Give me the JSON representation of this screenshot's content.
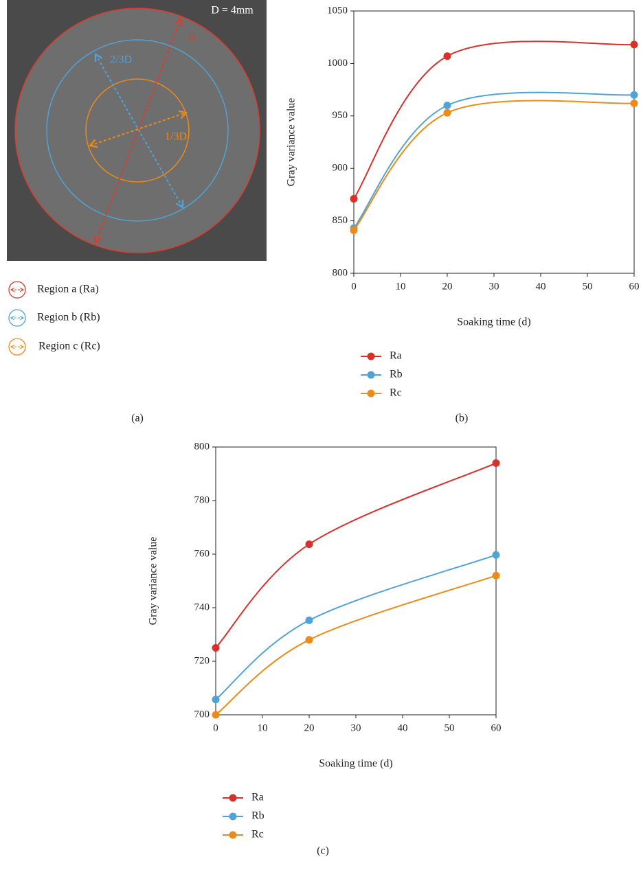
{
  "panel_a": {
    "scale_label": "D = 4mm",
    "diameter_labels": [
      "D",
      "2/3D",
      "1/3D"
    ],
    "legend": [
      "Region a (Ra)",
      "Region b (Rb)",
      "Region c (Rc)"
    ],
    "panel_label": "(a)"
  },
  "chart_data": [
    {
      "type": "line",
      "panel_label": "(b)",
      "y_label": "Gray variance value",
      "x_label": "Soaking time (d)",
      "x": [
        0,
        20,
        60
      ],
      "xlim": [
        0,
        60
      ],
      "xticks": [
        0,
        10,
        20,
        30,
        40,
        50,
        60
      ],
      "ylim": [
        800,
        1050
      ],
      "yticks": [
        800,
        850,
        900,
        950,
        1000,
        1050
      ],
      "legend": "bottom-left",
      "series": [
        {
          "name": "Ra",
          "color": "#d9302a",
          "values": [
            871,
            1007,
            1018
          ]
        },
        {
          "name": "Rb",
          "color": "#4fa3d6",
          "values": [
            843,
            960,
            970
          ]
        },
        {
          "name": "Rc",
          "color": "#ee8a17",
          "values": [
            841,
            953,
            962
          ]
        }
      ]
    },
    {
      "type": "line",
      "panel_label": "(c)",
      "y_label": "Gray variance value",
      "x_label": "Soaking time (d)",
      "x": [
        0,
        20,
        60
      ],
      "xlim": [
        0,
        60
      ],
      "xticks": [
        0,
        10,
        20,
        30,
        40,
        50,
        60
      ],
      "ylim": [
        700,
        800
      ],
      "yticks": [
        700,
        720,
        740,
        760,
        780,
        800
      ],
      "legend": "bottom-left",
      "series": [
        {
          "name": "Ra",
          "color": "#d9302a",
          "values": [
            725,
            763.7,
            794
          ]
        },
        {
          "name": "Rb",
          "color": "#4fa3d6",
          "values": [
            705.7,
            735.3,
            759.7
          ]
        },
        {
          "name": "Rc",
          "color": "#ee8a17",
          "values": [
            700,
            728,
            752
          ]
        }
      ]
    }
  ]
}
